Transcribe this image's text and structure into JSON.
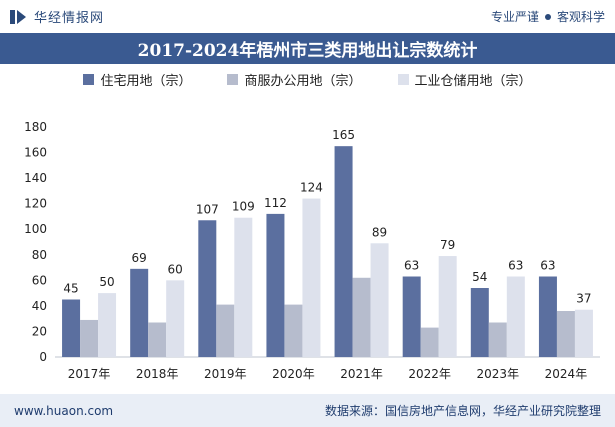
{
  "header": {
    "brand_name": "华经情报网",
    "slogan_left": "专业严谨",
    "slogan_right": "客观科学",
    "logo_icon": "huajing-logo-icon"
  },
  "title": "2017-2024年梧州市三类用地出让宗数统计",
  "footer": {
    "website": "www.huaon.com",
    "source": "数据来源：国信房地产信息网，华经产业研究院整理"
  },
  "chart_data": {
    "type": "bar",
    "categories": [
      "2017年",
      "2018年",
      "2019年",
      "2020年",
      "2021年",
      "2022年",
      "2023年",
      "2024年"
    ],
    "series": [
      {
        "name": "住宅用地（宗）",
        "values": [
          45,
          69,
          107,
          112,
          165,
          63,
          54,
          63
        ],
        "color": "#5b6f9f",
        "show_labels": true
      },
      {
        "name": "商服办公用地（宗）",
        "values": [
          29,
          27,
          41,
          41,
          62,
          23,
          27,
          36
        ],
        "color": "#b6bccd",
        "show_labels": false
      },
      {
        "name": "工业仓储用地（宗）",
        "values": [
          50,
          60,
          109,
          124,
          89,
          79,
          63,
          37
        ],
        "color": "#dde1ec",
        "show_labels": true
      }
    ],
    "xlabel": "",
    "ylabel": "",
    "ylim": [
      0,
      180
    ],
    "yticks": [
      0,
      20,
      40,
      60,
      80,
      100,
      120,
      140,
      160,
      180
    ],
    "grid": false,
    "legend_position": "top"
  }
}
